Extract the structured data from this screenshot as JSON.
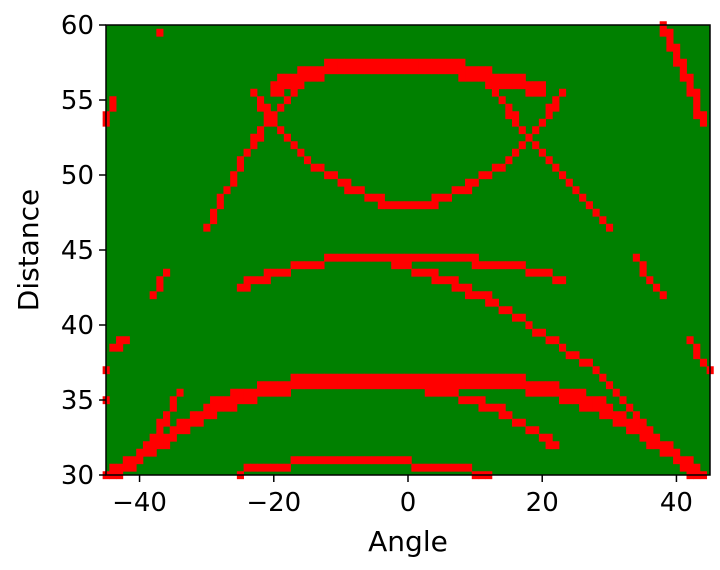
{
  "chart_data": {
    "type": "heatmap",
    "title": "",
    "xlabel": "Angle",
    "ylabel": "Distance",
    "xlim": [
      -45,
      45
    ],
    "ylim": [
      30,
      60
    ],
    "xticks": [
      -40,
      -20,
      0,
      20,
      40
    ],
    "yticks": [
      30,
      35,
      40,
      45,
      50,
      55,
      60
    ],
    "cell_size": {
      "angle": 1,
      "distance": 0.5
    },
    "colors": {
      "background": "#008000",
      "highlight": "#ff0000",
      "axes": "#000000"
    },
    "grid": false,
    "legend": "none",
    "red_bands": [
      {
        "name": "arc-1",
        "thickness": 1,
        "points": [
          [
            -23,
            55.5
          ],
          [
            -20,
            53.5
          ],
          [
            -15,
            51.0
          ],
          [
            -10,
            49.5
          ],
          [
            -6,
            48.6
          ],
          [
            -3,
            48.1
          ],
          [
            0,
            48.0
          ],
          [
            3,
            48.1
          ],
          [
            6,
            48.6
          ],
          [
            10,
            49.5
          ],
          [
            15,
            51.0
          ],
          [
            20,
            53.5
          ],
          [
            23,
            55.5
          ]
        ]
      },
      {
        "name": "top-band",
        "thickness": 2,
        "points": [
          [
            -20,
            56.0
          ],
          [
            -15,
            57.0
          ],
          [
            -10,
            57.5
          ],
          [
            -5,
            57.5
          ],
          [
            0,
            57.5
          ],
          [
            5,
            57.5
          ],
          [
            10,
            57.0
          ],
          [
            15,
            56.5
          ],
          [
            20,
            56.0
          ]
        ]
      },
      {
        "name": "top-arc-left",
        "thickness": 1,
        "points": [
          [
            -30,
            46.5
          ],
          [
            -27,
            49.0
          ],
          [
            -24,
            51.5
          ],
          [
            -21,
            53.5
          ],
          [
            -18,
            55.0
          ],
          [
            -15,
            56.5
          ],
          [
            -12,
            57.5
          ]
        ]
      },
      {
        "name": "top-arc-right",
        "thickness": 1,
        "points": [
          [
            8,
            57.5
          ],
          [
            11,
            56.5
          ],
          [
            14,
            55.0
          ],
          [
            17,
            53.0
          ],
          [
            20,
            51.5
          ],
          [
            23,
            50.0
          ],
          [
            26,
            48.5
          ],
          [
            29,
            47.0
          ],
          [
            30,
            46.5
          ]
        ]
      },
      {
        "name": "mid-arc-flat",
        "thickness": 1,
        "points": [
          [
            -25,
            42.5
          ],
          [
            -20,
            43.5
          ],
          [
            -15,
            44.0
          ],
          [
            -10,
            44.5
          ],
          [
            0,
            44.5
          ],
          [
            5,
            44.5
          ],
          [
            8,
            44.5
          ],
          [
            12,
            44.0
          ],
          [
            15,
            44.0
          ],
          [
            20,
            43.5
          ],
          [
            23,
            43.0
          ]
        ]
      },
      {
        "name": "mid-arc-slope",
        "thickness": 1,
        "points": [
          [
            -2,
            44.0
          ],
          [
            3,
            43.5
          ],
          [
            8,
            42.5
          ],
          [
            13,
            41.5
          ],
          [
            18,
            40.0
          ],
          [
            23,
            38.5
          ],
          [
            26,
            37.5
          ]
        ]
      },
      {
        "name": "lower-wide-left",
        "thickness": 2,
        "points": [
          [
            -45,
            30.0
          ],
          [
            -40,
            31.5
          ],
          [
            -35,
            33.0
          ],
          [
            -30,
            34.5
          ],
          [
            -25,
            35.5
          ],
          [
            -20,
            36.0
          ],
          [
            -15,
            36.5
          ],
          [
            -10,
            36.5
          ],
          [
            -5,
            36.5
          ],
          [
            0,
            36.5
          ],
          [
            5,
            36.5
          ],
          [
            10,
            36.5
          ],
          [
            15,
            36.5
          ],
          [
            20,
            36.0
          ],
          [
            25,
            35.5
          ],
          [
            30,
            34.5
          ],
          [
            35,
            33.0
          ],
          [
            40,
            31.5
          ],
          [
            44,
            30.0
          ]
        ]
      },
      {
        "name": "lower-diag",
        "thickness": 1,
        "points": [
          [
            0,
            36.0
          ],
          [
            5,
            35.5
          ],
          [
            10,
            35.0
          ],
          [
            15,
            34.0
          ],
          [
            20,
            32.5
          ],
          [
            22,
            32.0
          ]
        ]
      },
      {
        "name": "left-diag",
        "thickness": 1,
        "points": [
          [
            -38,
            32.0
          ],
          [
            -36,
            34.0
          ],
          [
            -34,
            35.5
          ]
        ]
      },
      {
        "name": "right-diag",
        "thickness": 1,
        "points": [
          [
            27,
            37.5
          ],
          [
            30,
            36.0
          ],
          [
            33,
            34.5
          ],
          [
            36,
            33.0
          ],
          [
            38,
            32.0
          ]
        ]
      },
      {
        "name": "bottom-arc",
        "thickness": 1,
        "points": [
          [
            -25,
            30.2
          ],
          [
            -20,
            30.6
          ],
          [
            -15,
            30.9
          ],
          [
            -10,
            31.0
          ],
          [
            -5,
            31.0
          ],
          [
            0,
            30.8
          ],
          [
            5,
            30.5
          ],
          [
            10,
            30.2
          ],
          [
            12,
            30.0
          ]
        ]
      },
      {
        "name": "right-lower-mid",
        "thickness": 1,
        "points": [
          [
            34,
            44.5
          ],
          [
            36,
            43.0
          ],
          [
            38,
            42.0
          ]
        ]
      },
      {
        "name": "right-edge-top",
        "thickness": 1,
        "points": [
          [
            38,
            60.0
          ],
          [
            40,
            58.0
          ],
          [
            42,
            56.0
          ],
          [
            44,
            53.5
          ]
        ]
      },
      {
        "name": "right-edge-mid",
        "thickness": 1,
        "points": [
          [
            42,
            39.0
          ],
          [
            44,
            37.5
          ],
          [
            45,
            37.0
          ]
        ]
      },
      {
        "name": "left-edge-top",
        "thickness": 1,
        "points": [
          [
            -45,
            53.5
          ],
          [
            -44,
            55.0
          ]
        ]
      },
      {
        "name": "left-short-mid",
        "thickness": 1,
        "points": [
          [
            -38,
            42.0
          ],
          [
            -36,
            43.5
          ]
        ]
      },
      {
        "name": "left-short-low",
        "thickness": 1,
        "points": [
          [
            -44,
            38.5
          ],
          [
            -42,
            39.0
          ]
        ]
      },
      {
        "name": "bottom-left-dot",
        "thickness": 1,
        "points": [
          [
            -45,
            37.0
          ]
        ]
      },
      {
        "name": "bottom-left-dot-2",
        "thickness": 1,
        "points": [
          [
            -45,
            35.0
          ]
        ]
      },
      {
        "name": "top-left-dot",
        "thickness": 1,
        "points": [
          [
            -37,
            59.5
          ]
        ]
      }
    ]
  }
}
